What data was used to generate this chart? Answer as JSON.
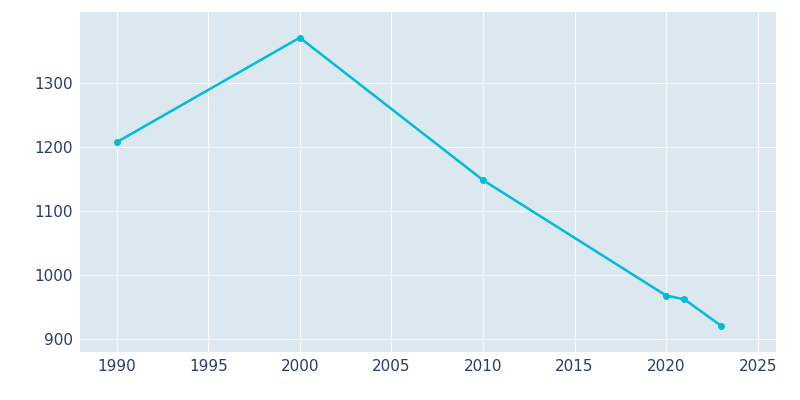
{
  "years": [
    1990,
    2000,
    2010,
    2020,
    2021,
    2023
  ],
  "population": [
    1207,
    1370,
    1148,
    968,
    962,
    921
  ],
  "line_color": "#00BCD4",
  "plot_background_color": "#dce8f0",
  "fig_background_color": "#ffffff",
  "grid_color": "#ffffff",
  "xlim": [
    1988,
    2026
  ],
  "ylim": [
    880,
    1410
  ],
  "xticks": [
    1990,
    1995,
    2000,
    2005,
    2010,
    2015,
    2020,
    2025
  ],
  "yticks": [
    900,
    1000,
    1100,
    1200,
    1300
  ],
  "linewidth": 1.8,
  "marker": "o",
  "markersize": 4,
  "tick_color": "#2b3a6b",
  "tick_labelsize": 11
}
